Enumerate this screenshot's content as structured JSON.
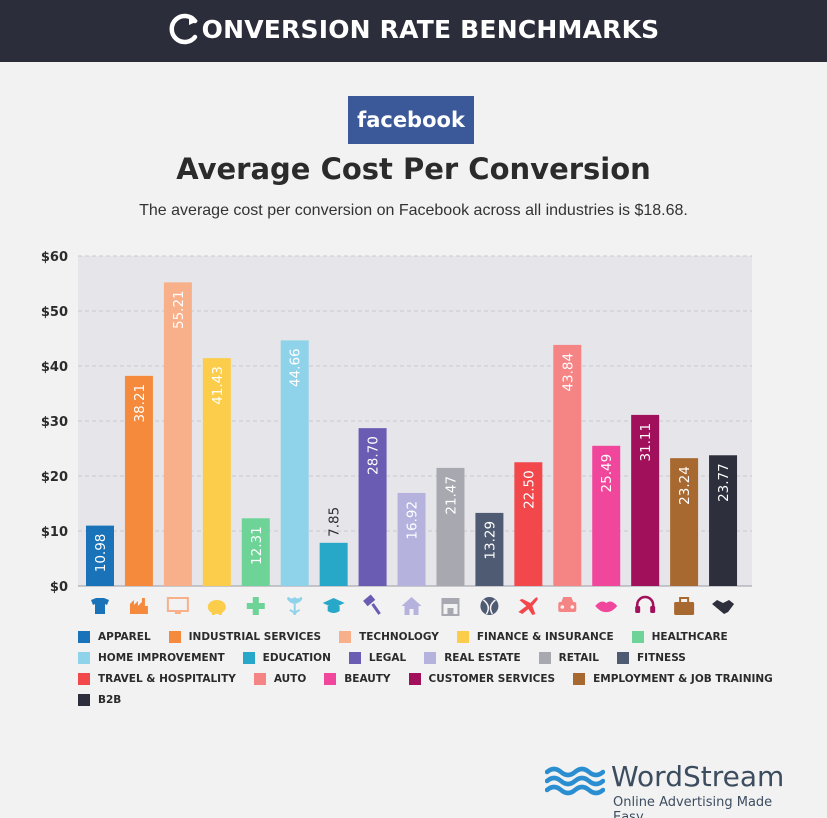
{
  "banner": {
    "title": "ONVERSION RATE BENCHMARKS",
    "logo_icon": "refresh-arrow-c-icon"
  },
  "badge": {
    "label": "facebook"
  },
  "header": {
    "title": "Average Cost Per Conversion",
    "subtitle": "The average cost per conversion on Facebook across all industries is $18.68."
  },
  "chart_data": {
    "type": "bar",
    "title": "Average Cost Per Conversion",
    "ylim": [
      0,
      60
    ],
    "yticks": [
      "$0",
      "$10",
      "$20",
      "$30",
      "$40",
      "$50",
      "$60"
    ],
    "grid": true,
    "legend_position": "bottom",
    "categories": [
      "APPAREL",
      "INDUSTRIAL SERVICES",
      "TECHNOLOGY",
      "FINANCE & INSURANCE",
      "HEALTHCARE",
      "HOME IMPROVEMENT",
      "EDUCATION",
      "LEGAL",
      "REAL ESTATE",
      "RETAIL",
      "FITNESS",
      "TRAVEL & HOSPITALITY",
      "AUTO",
      "BEAUTY",
      "CUSTOMER SERVICES",
      "EMPLOYMENT & JOB TRAINING",
      "B2B"
    ],
    "values": [
      10.98,
      38.21,
      55.21,
      41.43,
      12.31,
      44.66,
      7.85,
      28.7,
      16.92,
      21.47,
      13.29,
      22.5,
      43.84,
      25.49,
      31.11,
      23.24,
      23.77
    ],
    "labels": [
      "10.98",
      "38.21",
      "55.21",
      "41.43",
      "12.31",
      "44.66",
      "7.85",
      "28.70",
      "16.92",
      "21.47",
      "13.29",
      "22.50",
      "43.84",
      "25.49",
      "31.11",
      "23.24",
      "23.77"
    ],
    "colors": [
      "#1a73b8",
      "#f58a3c",
      "#f8b08a",
      "#fbcd4b",
      "#6dd396",
      "#8fd3ea",
      "#28a8c8",
      "#6a5bb3",
      "#b5b2de",
      "#a8a8b0",
      "#4f5b72",
      "#f2474b",
      "#f58585",
      "#f0469b",
      "#a1105a",
      "#a86930",
      "#2d2f3d"
    ],
    "icons": [
      "tshirt-icon",
      "factory-icon",
      "monitor-icon",
      "piggy-bank-icon",
      "medical-cross-icon",
      "tulip-icon",
      "graduation-cap-icon",
      "gavel-icon",
      "house-icon",
      "storefront-icon",
      "ball-icon",
      "airplane-icon",
      "car-icon",
      "lips-icon",
      "headset-icon",
      "briefcase-icon",
      "handshake-icon"
    ]
  },
  "legend": {
    "rows": [
      [
        0,
        1,
        2,
        3,
        4
      ],
      [
        5,
        6,
        7,
        8,
        9,
        10
      ],
      [
        11,
        12,
        13,
        14,
        15
      ],
      [
        16
      ]
    ]
  },
  "brand": {
    "name": "WordStream",
    "tagline": "Online Advertising Made Easy",
    "logo_icon": "waves-icon"
  }
}
